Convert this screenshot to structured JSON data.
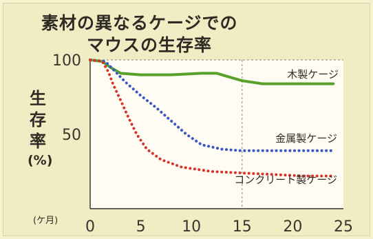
{
  "chart_data": {
    "type": "line",
    "title_line1": "素材の異なるケージでの",
    "title_line2": "マウスの生存率",
    "ylabel": "生存率",
    "ylabel_unit": "(%)",
    "xunit": "(ケ月)",
    "xlim": [
      0,
      25
    ],
    "ylim": [
      0,
      100
    ],
    "xticks": [
      0,
      5,
      10,
      15,
      20,
      25
    ],
    "yticks": [
      50,
      100
    ],
    "grid": "dashed lines at x=15 and y=100",
    "series": [
      {
        "name": "木製ケージ",
        "color": "#5aa02c",
        "style": "solid",
        "points": [
          [
            0,
            100
          ],
          [
            1.2,
            99
          ],
          [
            2,
            95
          ],
          [
            3,
            91
          ],
          [
            5,
            90
          ],
          [
            8,
            90
          ],
          [
            11,
            91
          ],
          [
            12.5,
            91
          ],
          [
            13.5,
            89
          ],
          [
            15,
            86
          ],
          [
            17,
            84
          ],
          [
            20,
            84
          ],
          [
            24,
            84
          ]
        ]
      },
      {
        "name": "金属製ケージ",
        "color": "#3a55c8",
        "style": "dotted",
        "points": [
          [
            0,
            100
          ],
          [
            1.5,
            99
          ],
          [
            2.5,
            92
          ],
          [
            3.5,
            85
          ],
          [
            5,
            76
          ],
          [
            6.5,
            68
          ],
          [
            8,
            59
          ],
          [
            9.5,
            50
          ],
          [
            11,
            43
          ],
          [
            13,
            40
          ],
          [
            15,
            39
          ],
          [
            18,
            39
          ],
          [
            21,
            39
          ],
          [
            24,
            39
          ]
        ]
      },
      {
        "name": "コンクリート製ケージ",
        "color": "#d8332a",
        "style": "dotted",
        "points": [
          [
            0,
            100
          ],
          [
            1.2,
            99
          ],
          [
            1.8,
            92
          ],
          [
            2.3,
            83
          ],
          [
            3,
            73
          ],
          [
            3.8,
            61
          ],
          [
            4.6,
            50
          ],
          [
            5.6,
            40
          ],
          [
            7,
            33
          ],
          [
            9,
            28
          ],
          [
            12,
            25
          ],
          [
            15,
            24
          ],
          [
            18,
            23
          ],
          [
            21,
            22
          ],
          [
            24,
            22
          ]
        ]
      }
    ]
  }
}
